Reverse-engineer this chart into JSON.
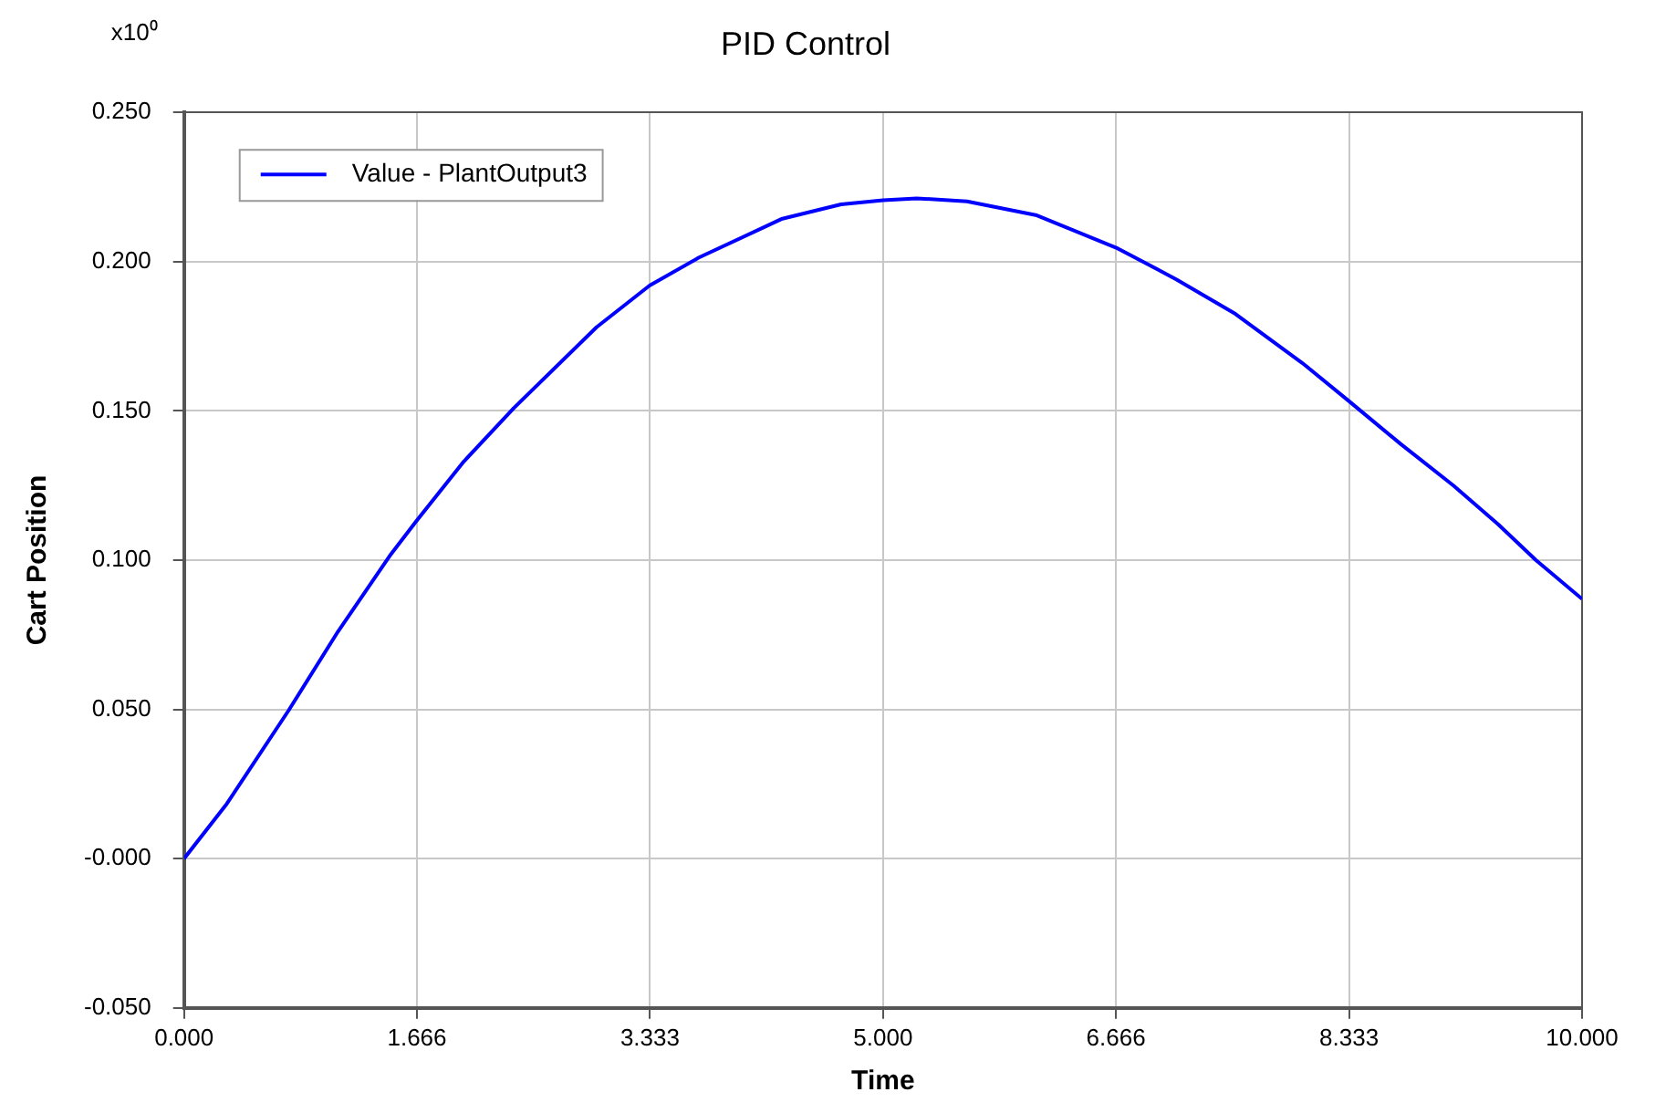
{
  "chart_data": {
    "type": "line",
    "title": "PID Control",
    "xlabel": "Time",
    "ylabel": "Cart Position",
    "annotations": [
      "x10⁰"
    ],
    "x": [
      0,
      0.3,
      0.75,
      1.1,
      1.48,
      1.66,
      2.0,
      2.36,
      2.95,
      3.33,
      3.68,
      4.28,
      4.7,
      5.0,
      5.24,
      5.6,
      6.1,
      6.68,
      7.1,
      7.52,
      8.0,
      8.34,
      8.7,
      9.08,
      9.4,
      9.67,
      10
    ],
    "series": [
      {
        "name": "Value - PlantOutput3",
        "color": "#0000ff",
        "values": [
          0,
          0.018,
          0.0498,
          0.076,
          0.102,
          0.113,
          0.133,
          0.151,
          0.178,
          0.192,
          0.2013,
          0.2144,
          0.2192,
          0.2206,
          0.2212,
          0.2202,
          0.2155,
          0.2044,
          0.194,
          0.1825,
          0.166,
          0.153,
          0.139,
          0.125,
          0.112,
          0.1,
          0.087
        ]
      }
    ],
    "xlim": [
      0,
      10
    ],
    "xticks": [
      {
        "value": 0,
        "label": "0.000"
      },
      1.666,
      3.333,
      {
        "value": 5,
        "label": "5.000"
      },
      6.666,
      8.333,
      {
        "value": 10,
        "label": "10.000"
      }
    ],
    "ylim": [
      -0.05,
      0.25
    ],
    "yticks": [
      {
        "value": -0.05,
        "label": "-0.050"
      },
      {
        "value": 0,
        "label": "-0.000"
      },
      {
        "value": 0.05,
        "label": "0.050"
      },
      {
        "value": 0.1,
        "label": "0.100"
      },
      {
        "value": 0.15,
        "label": "0.150"
      },
      {
        "value": 0.2,
        "label": "0.200"
      },
      {
        "value": 0.25,
        "label": "0.250"
      }
    ],
    "grid": true,
    "legend": "top left",
    "marker": "none",
    "line_style": "solid"
  }
}
